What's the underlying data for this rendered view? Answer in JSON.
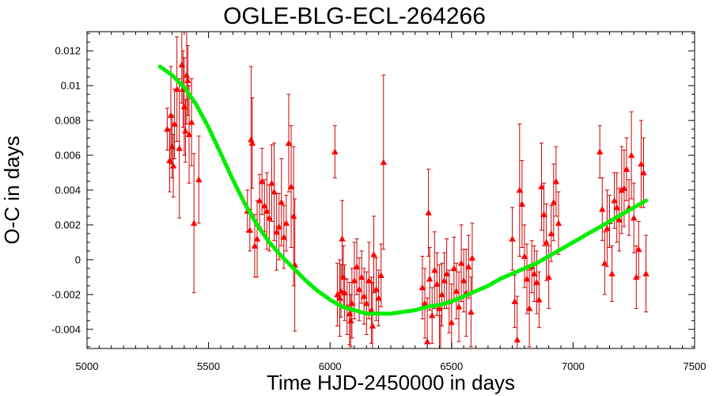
{
  "chart_data": {
    "type": "scatter",
    "title": "OGLE-BLG-ECL-264266",
    "xlabel": "Time HJD-2450000 in days",
    "ylabel": "O-C in days",
    "xlim": [
      5000,
      7500
    ],
    "ylim": [
      -0.0051,
      0.0131
    ],
    "xticks": [
      5000,
      5500,
      6000,
      6500,
      7000,
      7500
    ],
    "yticks": [
      -0.004,
      -0.002,
      0,
      0.002,
      0.004,
      0.006,
      0.008,
      0.01,
      0.012
    ],
    "xtick_labels": [
      "5000",
      "5500",
      "6000",
      "6500",
      "7000",
      "7500"
    ],
    "ytick_labels": [
      "-0.004",
      "-0.002",
      "0",
      "0.002",
      "0.004",
      "0.006",
      "0.008",
      "0.01",
      "0.012"
    ],
    "grid": false,
    "series": [
      {
        "marker": "triangle",
        "color": "#ff0000",
        "errorbar_color": "#cc0000",
        "points": [
          [
            5330,
            0.0075,
            0.0012
          ],
          [
            5340,
            0.0057,
            0.0018
          ],
          [
            5345,
            0.0083,
            0.0028
          ],
          [
            5350,
            0.0065,
            0.0018
          ],
          [
            5355,
            0.0054,
            0.0018
          ],
          [
            5360,
            0.0078,
            0.002
          ],
          [
            5370,
            0.0098,
            0.003
          ],
          [
            5380,
            0.0064,
            0.004
          ],
          [
            5390,
            0.0112,
            0.0022
          ],
          [
            5395,
            0.0098,
            0.0022
          ],
          [
            5400,
            0.0088,
            0.0028
          ],
          [
            5405,
            0.0074,
            0.0018
          ],
          [
            5410,
            0.0106,
            0.0028
          ],
          [
            5415,
            0.0103,
            0.002
          ],
          [
            5420,
            0.0072,
            0.0028
          ],
          [
            5430,
            0.0079,
            0.0025
          ],
          [
            5440,
            0.0021,
            0.004
          ],
          [
            5460,
            0.0046,
            0.0025
          ],
          [
            5660,
            0.0028,
            0.0012
          ],
          [
            5670,
            0.0017,
            0.0012
          ],
          [
            5675,
            0.0069,
            0.0042
          ],
          [
            5680,
            0.0067,
            0.0026
          ],
          [
            5690,
            0.0008,
            0.0018
          ],
          [
            5700,
            0.0012,
            0.0022
          ],
          [
            5710,
            0.0034,
            0.0015
          ],
          [
            5720,
            0.0045,
            0.0019
          ],
          [
            5730,
            0.0031,
            0.0015
          ],
          [
            5740,
            0.0028,
            0.0022
          ],
          [
            5750,
            0.0024,
            0.0019
          ],
          [
            5760,
            0.0044,
            0.0022
          ],
          [
            5770,
            0.0039,
            0.0028
          ],
          [
            5780,
            0.0016,
            0.0022
          ],
          [
            5790,
            0.0019,
            0.0019
          ],
          [
            5800,
            0.0033,
            0.0025
          ],
          [
            5810,
            0.0013,
            0.0018
          ],
          [
            5820,
            0.0021,
            0.0016
          ],
          [
            5830,
            0.0067,
            0.0028
          ],
          [
            5840,
            0.0042,
            0.0035
          ],
          [
            5850,
            0.0025,
            0.004
          ],
          [
            5855,
            -0.0003,
            0.0038
          ],
          [
            6020,
            0.0062,
            0.0015
          ],
          [
            6030,
            -0.002,
            0.0018
          ],
          [
            6040,
            -0.0022,
            0.0022
          ],
          [
            6045,
            -0.0018,
            0.0015
          ],
          [
            6050,
            0.0012,
            0.0022
          ],
          [
            6055,
            -0.001,
            0.0018
          ],
          [
            6060,
            -0.0019,
            0.0016
          ],
          [
            6070,
            -0.0027,
            0.0016
          ],
          [
            6080,
            -0.0031,
            0.0018
          ],
          [
            6085,
            -0.0035,
            0.0015
          ],
          [
            6090,
            -0.0025,
            0.002
          ],
          [
            6100,
            -0.0012,
            0.0022
          ],
          [
            6110,
            -0.0004,
            0.0016
          ],
          [
            6120,
            -0.0017,
            0.0018
          ],
          [
            6130,
            -0.001,
            0.0015
          ],
          [
            6140,
            -0.0021,
            0.0016
          ],
          [
            6150,
            -0.0025,
            0.0018
          ],
          [
            6160,
            -0.0012,
            0.0022
          ],
          [
            6170,
            -0.0029,
            0.0019
          ],
          [
            6175,
            -0.0038,
            0.0025
          ],
          [
            6180,
            0.0003,
            0.0022
          ],
          [
            6190,
            -0.0017,
            0.0018
          ],
          [
            6200,
            -0.0022,
            0.0016
          ],
          [
            6210,
            -0.0009,
            0.0018
          ],
          [
            6220,
            0.0056,
            0.005
          ],
          [
            6380,
            -0.0016,
            0.0018
          ],
          [
            6390,
            -0.0025,
            0.002
          ],
          [
            6400,
            -0.0047,
            0.0025
          ],
          [
            6405,
            0.0027,
            0.0025
          ],
          [
            6410,
            -0.0011,
            0.0018
          ],
          [
            6420,
            -0.0032,
            0.0016
          ],
          [
            6430,
            -0.0006,
            0.0022
          ],
          [
            6440,
            -0.0014,
            0.0018
          ],
          [
            6450,
            -0.0028,
            0.0025
          ],
          [
            6455,
            -0.0052,
            0.002
          ],
          [
            6460,
            -0.002,
            0.0018
          ],
          [
            6470,
            -0.0012,
            0.0016
          ],
          [
            6480,
            -0.0008,
            0.002
          ],
          [
            6490,
            -0.0024,
            0.0018
          ],
          [
            6500,
            -0.0036,
            0.0022
          ],
          [
            6510,
            -0.0005,
            0.0018
          ],
          [
            6520,
            -0.0018,
            0.0016
          ],
          [
            6530,
            -0.0027,
            0.002
          ],
          [
            6540,
            -0.0002,
            0.0022
          ],
          [
            6550,
            -0.0012,
            0.0018
          ],
          [
            6560,
            -0.0019,
            0.0025
          ],
          [
            6570,
            -0.0004,
            0.0018
          ],
          [
            6580,
            -0.003,
            0.002
          ],
          [
            6585,
            0.0001,
            0.002
          ],
          [
            6750,
            0.0012,
            0.0018
          ],
          [
            6760,
            -0.0024,
            0.0015
          ],
          [
            6770,
            -0.0046,
            0.0025
          ],
          [
            6780,
            0.004,
            0.0038
          ],
          [
            6790,
            0.0032,
            0.0025
          ],
          [
            6800,
            0.0002,
            0.0018
          ],
          [
            6810,
            -0.0011,
            0.002
          ],
          [
            6820,
            -0.0028,
            0.0022
          ],
          [
            6830,
            -0.0004,
            0.0015
          ],
          [
            6840,
            -0.0008,
            0.0016
          ],
          [
            6850,
            -0.0013,
            0.0018
          ],
          [
            6860,
            -0.0023,
            0.0016
          ],
          [
            6870,
            0.0042,
            0.0025
          ],
          [
            6880,
            0.0026,
            0.0018
          ],
          [
            6890,
            0.001,
            0.0022
          ],
          [
            6900,
            -0.001,
            0.0018
          ],
          [
            6910,
            0.0015,
            0.0016
          ],
          [
            6920,
            0.0033,
            0.0022
          ],
          [
            6930,
            0.0045,
            0.002
          ],
          [
            6940,
            0.0021,
            0.0018
          ],
          [
            7110,
            0.0062,
            0.0015
          ],
          [
            7120,
            0.0029,
            0.0018
          ],
          [
            7130,
            -0.0002,
            0.0018
          ],
          [
            7140,
            0.0018,
            0.0022
          ],
          [
            7150,
            0.0022,
            0.0015
          ],
          [
            7160,
            -0.0008,
            0.0016
          ],
          [
            7170,
            0.0034,
            0.0016
          ],
          [
            7180,
            0.003,
            0.002
          ],
          [
            7190,
            0.0023,
            0.0018
          ],
          [
            7200,
            0.004,
            0.0025
          ],
          [
            7210,
            0.0041,
            0.0022
          ],
          [
            7220,
            0.0052,
            0.0018
          ],
          [
            7230,
            0.003,
            0.0016
          ],
          [
            7240,
            0.006,
            0.0025
          ],
          [
            7250,
            0.0024,
            0.002
          ],
          [
            7260,
            -0.001,
            0.0018
          ],
          [
            7270,
            0.0006,
            0.0016
          ],
          [
            7280,
            0.0055,
            0.0025
          ],
          [
            7290,
            0.005,
            0.002
          ],
          [
            7300,
            -0.0008,
            0.0022
          ]
        ]
      },
      {
        "type": "line",
        "color": "#00ee00",
        "x": [
          5300,
          5350,
          5400,
          5450,
          5500,
          5550,
          5600,
          5650,
          5700,
          5750,
          5800,
          5850,
          5900,
          5950,
          6000,
          6050,
          6100,
          6150,
          6200,
          6250,
          6300,
          6350,
          6400,
          6450,
          6500,
          6550,
          6600,
          6650,
          6700,
          6750,
          6800,
          6850,
          6900,
          6950,
          7000,
          7050,
          7100,
          7150,
          7200,
          7250,
          7300
        ],
        "y": [
          0.0111,
          0.0106,
          0.0099,
          0.0089,
          0.0076,
          0.0061,
          0.0046,
          0.0032,
          0.002,
          0.001,
          0.0002,
          -0.0005,
          -0.0012,
          -0.0018,
          -0.0023,
          -0.0027,
          -0.0029,
          -0.0031,
          -0.0031,
          -0.0031,
          -0.003,
          -0.0029,
          -0.0027,
          -0.0026,
          -0.0024,
          -0.0021,
          -0.0018,
          -0.0015,
          -0.0011,
          -0.0008,
          -0.0005,
          -0.0002,
          0.0002,
          0.0006,
          0.001,
          0.0014,
          0.0018,
          0.0022,
          0.0026,
          0.003,
          0.0034
        ]
      }
    ]
  }
}
